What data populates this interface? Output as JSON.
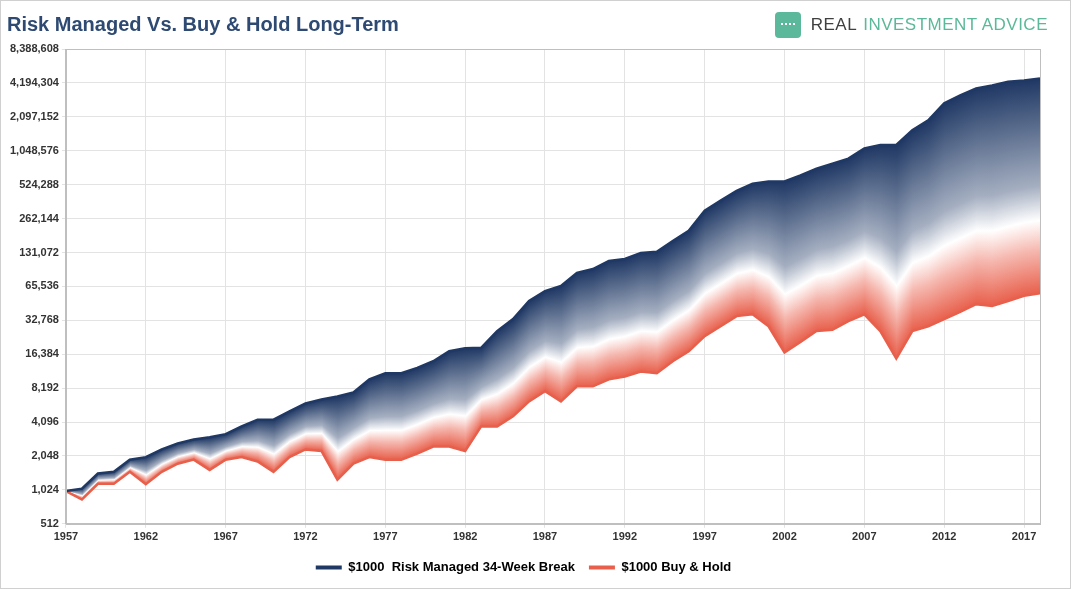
{
  "chart_data": {
    "type": "line",
    "title": "Risk Managed Vs. Buy & Hold Long-Term",
    "brand": "REAL INVESTMENT ADVICE",
    "x": [
      1957,
      1958,
      1959,
      1960,
      1961,
      1962,
      1963,
      1964,
      1965,
      1966,
      1967,
      1968,
      1969,
      1970,
      1971,
      1972,
      1973,
      1974,
      1975,
      1976,
      1977,
      1978,
      1979,
      1980,
      1981,
      1982,
      1983,
      1984,
      1985,
      1986,
      1987,
      1988,
      1989,
      1990,
      1991,
      1992,
      1993,
      1994,
      1995,
      1996,
      1997,
      1998,
      1999,
      2000,
      2001,
      2002,
      2003,
      2004,
      2005,
      2006,
      2007,
      2008,
      2009,
      2010,
      2011,
      2012,
      2013,
      2014,
      2015,
      2016,
      2017,
      2018
    ],
    "series": [
      {
        "name": "$1000  Risk Managed 34-Week Break",
        "color": "#1f3864",
        "values": [
          1000,
          1050,
          1430,
          1480,
          1900,
          2000,
          2340,
          2650,
          2870,
          3000,
          3200,
          3750,
          4300,
          4300,
          5100,
          6000,
          6500,
          6900,
          7500,
          9800,
          11100,
          11100,
          12400,
          14200,
          17400,
          18500,
          18700,
          26300,
          33600,
          48600,
          59600,
          66000,
          86500,
          93400,
          110000,
          115000,
          130000,
          133000,
          166000,
          204000,
          308000,
          378000,
          463000,
          535000,
          560000,
          560000,
          632000,
          727000,
          806000,
          893000,
          1098000,
          1180000,
          1180000,
          1590000,
          1950000,
          2770000,
          3250000,
          3740000,
          3990000,
          4290000,
          4400000,
          4600000
        ]
      },
      {
        "name": "$1000 Buy & Hold",
        "color": "#e8604c",
        "values": [
          1000,
          840,
          1160,
          1160,
          1480,
          1150,
          1480,
          1750,
          1900,
          1540,
          1900,
          2000,
          1830,
          1480,
          2000,
          2340,
          2270,
          1260,
          1750,
          2000,
          1900,
          1900,
          2150,
          2480,
          2480,
          2270,
          3750,
          3750,
          4600,
          6250,
          7700,
          6250,
          8500,
          8500,
          9800,
          10400,
          11500,
          11100,
          14200,
          17400,
          23700,
          29000,
          35700,
          37000,
          29000,
          17000,
          21000,
          26300,
          27000,
          32200,
          37000,
          26300,
          15000,
          26300,
          29000,
          33600,
          39000,
          45600,
          44000,
          48600,
          54000,
          57000
        ]
      }
    ],
    "xlim": [
      1957,
      2018
    ],
    "xticks": [
      1957,
      1962,
      1967,
      1972,
      1977,
      1982,
      1987,
      1992,
      1997,
      2002,
      2007,
      2012,
      2017
    ],
    "ylim": [
      512,
      8388608
    ],
    "yticks": [
      512,
      {
        "value": 1024,
        "label": "1,024"
      },
      {
        "value": 2048,
        "label": "2,048"
      },
      {
        "value": 4096,
        "label": "4,096"
      },
      {
        "value": 8192,
        "label": "8,192"
      },
      {
        "value": 16384,
        "label": "16,384"
      },
      {
        "value": 32768,
        "label": "32,768"
      },
      {
        "value": 65536,
        "label": "65,536"
      },
      {
        "value": 131072,
        "label": "131,072"
      },
      {
        "value": 262144,
        "label": "262,144"
      },
      {
        "value": 524288,
        "label": "524,288"
      },
      {
        "value": 1048576,
        "label": "1,048,576"
      },
      {
        "value": 2097152,
        "label": "2,097,152"
      },
      {
        "value": 4194304,
        "label": "4,194,304"
      },
      {
        "value": 8388608,
        "label": "8,388,608"
      }
    ],
    "log": "y",
    "grid": true,
    "legend": "bottom"
  }
}
